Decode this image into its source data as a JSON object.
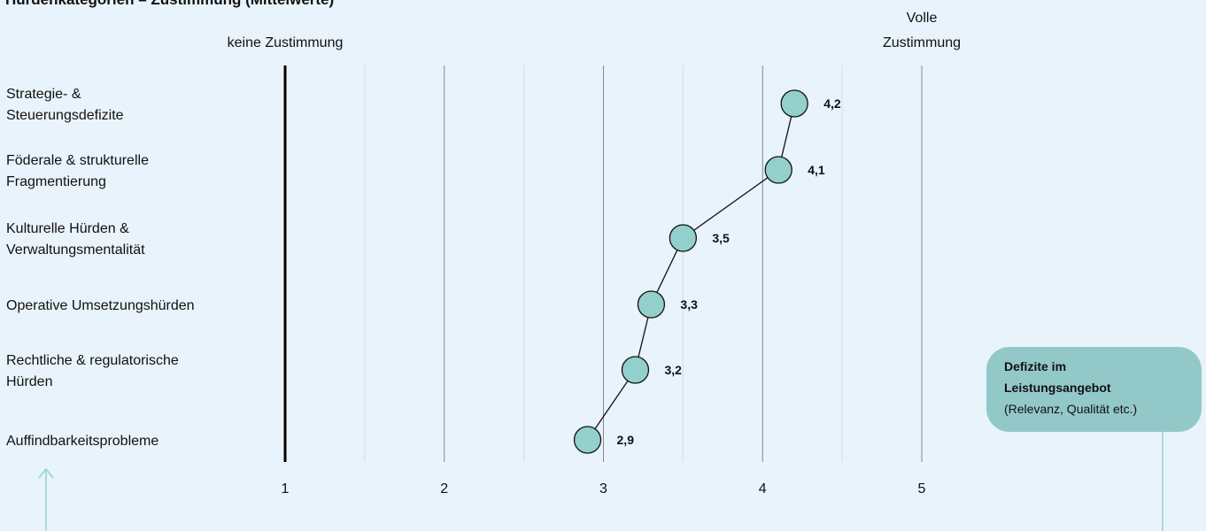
{
  "chart_data": {
    "type": "line",
    "title": "Hürdenkategorien – Zustimmung (Mittelwerte)",
    "scale_left_label": "keine Zustimmung",
    "scale_right_label": [
      "Volle",
      "Zustimmung"
    ],
    "xlim": [
      1,
      5
    ],
    "x_ticks": [
      "1",
      "2",
      "3",
      "4",
      "5"
    ],
    "grid": true,
    "categories": [
      [
        "Strategie- &",
        "Steuerungsdefizite"
      ],
      [
        "Föderale & strukturelle",
        "Fragmentierung"
      ],
      [
        "Kulturelle Hürden &",
        "Verwaltungsmentalität"
      ],
      [
        "Operative Umsetzungshürden"
      ],
      [
        "Rechtliche & regulatorische",
        "Hürden"
      ],
      [
        "Auffindbarkeitsprobleme"
      ]
    ],
    "values": [
      4.2,
      4.1,
      3.5,
      3.3,
      3.2,
      2.9
    ],
    "value_labels": [
      "4,2",
      "4,1",
      "3,5",
      "3,3",
      "3,2",
      "2,9"
    ]
  },
  "callout": {
    "line1": "Defizite im",
    "line2": "Leistungsangebot",
    "line3": "(Relevanz, Qualität etc.)"
  },
  "colors": {
    "marker_fill": "#93cfcb",
    "callout_bg": "#93c8c9",
    "arrow": "#93d3cf",
    "grid": "#888888",
    "grid_minor": "#d5dde5"
  }
}
